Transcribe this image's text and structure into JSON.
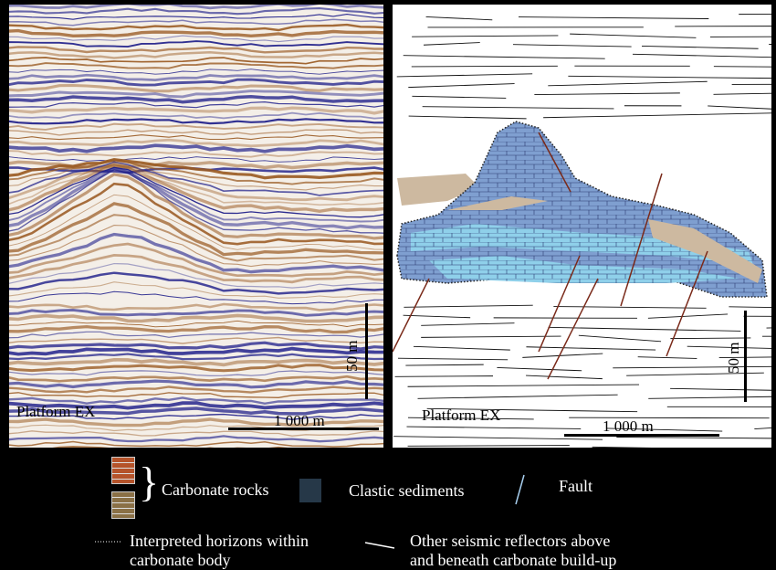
{
  "panels": {
    "seismic": {
      "label": "Platform EX",
      "scale_horizontal": "1 000 m",
      "scale_vertical": "50 m"
    },
    "interpretation": {
      "label": "Platform EX",
      "scale_horizontal": "1 000 m",
      "scale_vertical": "50 m"
    }
  },
  "legend": {
    "carbonate_rocks": "Carbonate rocks",
    "clastic_sediments": "Clastic sediments",
    "fault": "Fault",
    "interpreted_horizons_line1": "Interpreted horizons within",
    "interpreted_horizons_line2": "carbonate body",
    "other_reflectors_line1": "Other seismic reflectors above",
    "other_reflectors_line2": "and beneath carbonate build-up"
  },
  "colors": {
    "carbonate_red": "#b5532a",
    "carbonate_brown": "#8a7046",
    "clastic": "#263848",
    "fault": "#a8d0f0",
    "carbonate_fill": "#7f9fd0",
    "carbonate_light": "#8fd0ea",
    "clastic_fill": "#cdb9a0",
    "seismic_positive": "#1f1f8a",
    "seismic_negative": "#9a5a22"
  }
}
